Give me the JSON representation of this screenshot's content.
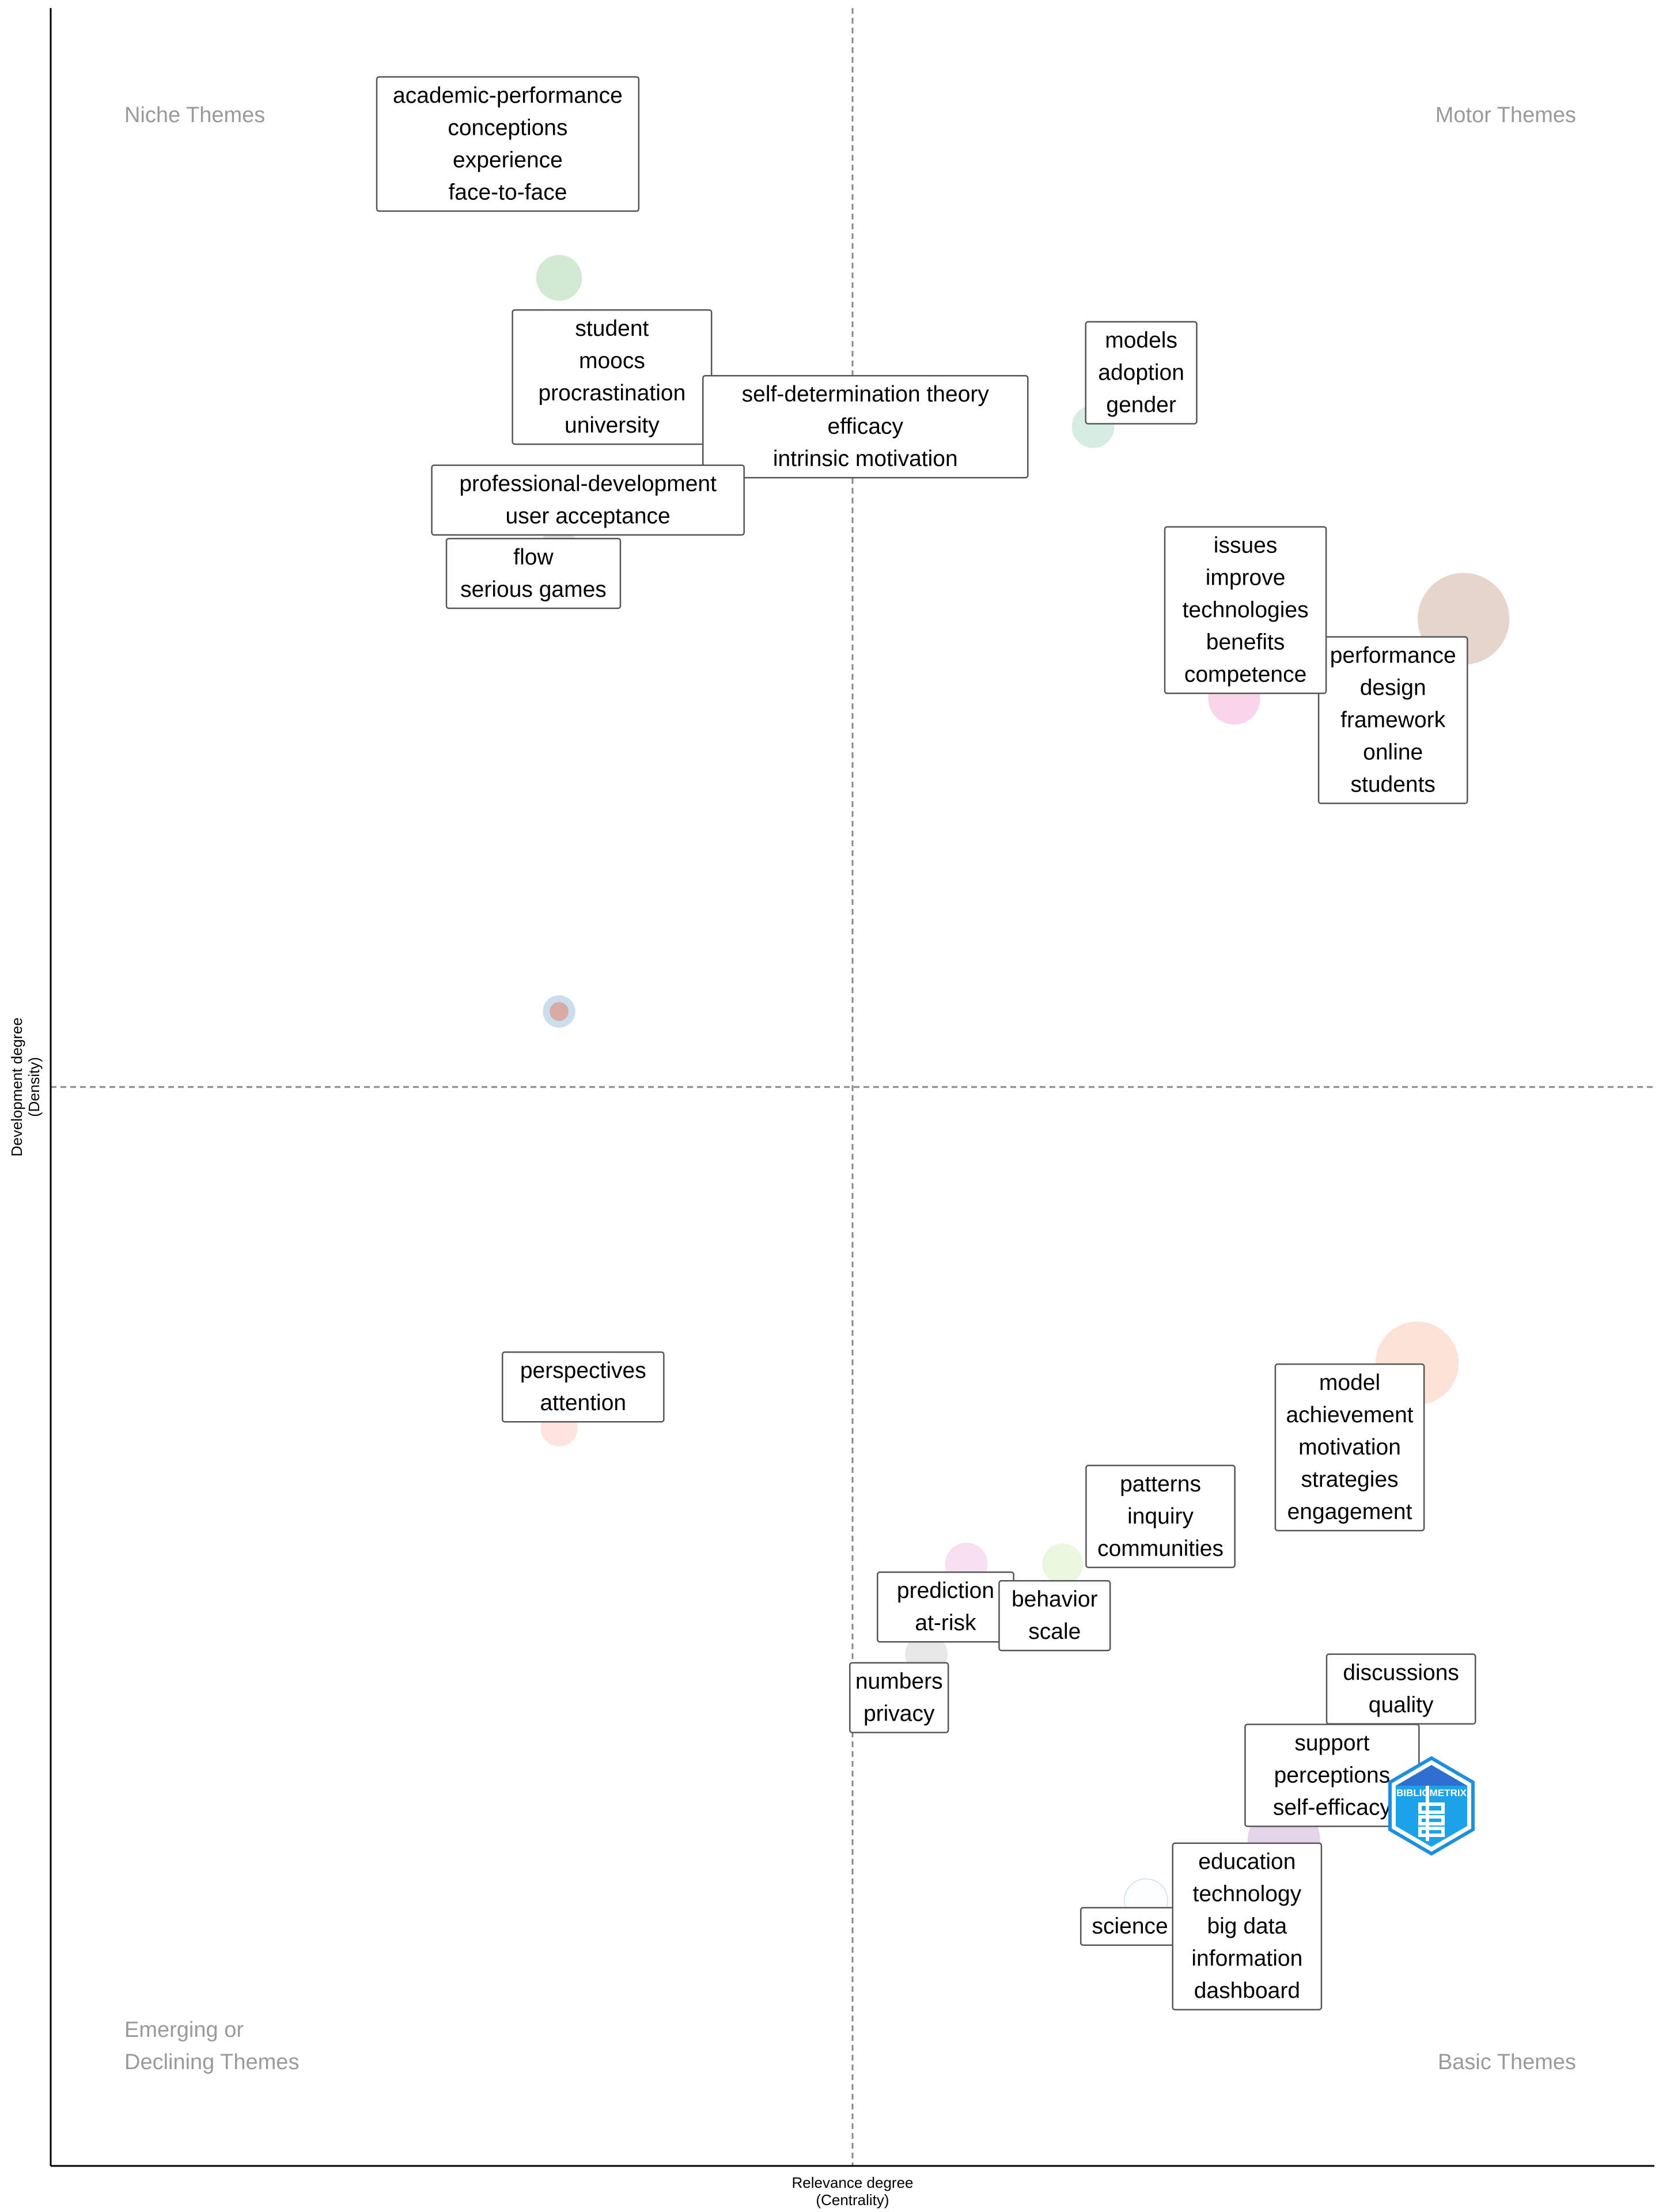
{
  "chart_data": {
    "type": "scatter",
    "subtype": "thematic-map",
    "xlabel": [
      "Relevance degree",
      "(Centrality)"
    ],
    "ylabel": [
      "Development degree",
      "(Density)"
    ],
    "xlim": [
      0,
      100
    ],
    "ylim": [
      0,
      100
    ],
    "x_divider": 50,
    "y_divider": 50,
    "grid": false,
    "quadrant_labels": {
      "top_left": [
        "Niche Themes"
      ],
      "top_right": [
        "Motor Themes"
      ],
      "bottom_left": [
        "Emerging or",
        "Declining Themes"
      ],
      "bottom_right": [
        "Basic Themes"
      ]
    },
    "logo_text": "BIBLIOMETRIX",
    "clusters": [
      {
        "x": 31.7,
        "y": 87.5,
        "size": 0.7,
        "color": "#cfe9cf",
        "label": [
          "academic-performance",
          "conceptions",
          "experience",
          "face-to-face"
        ],
        "label_x": 28.5,
        "label_y": 93.7
      },
      {
        "x": 31.7,
        "y": 84.7,
        "size": 0.75,
        "color": "#f6c6c6",
        "label": [
          "student",
          "moocs",
          "procrastination",
          "university"
        ],
        "label_x": 35.0,
        "label_y": 82.9
      },
      {
        "x": 58.7,
        "y": 80.6,
        "size": 0.6,
        "color": "#fbefb8",
        "label": [
          "self-determination theory",
          "efficacy",
          "intrinsic motivation"
        ],
        "label_x": 50.8,
        "label_y": 80.6
      },
      {
        "x": 65.0,
        "y": 80.6,
        "size": 0.6,
        "color": "#d3ece2",
        "label": [
          "models",
          "adoption",
          "gender"
        ],
        "label_x": 68.0,
        "label_y": 83.1
      },
      {
        "x": 31.7,
        "y": 75.0,
        "size": 0.5,
        "color": "#e3e3e3",
        "label": [
          "professional-development",
          "user acceptance"
        ],
        "label_x": 33.5,
        "label_y": 77.2
      },
      {
        "x": 31.7,
        "y": 75.0,
        "size": 0.4,
        "color": "#dddddd",
        "label": [
          "flow",
          "serious games"
        ],
        "label_x": 30.1,
        "label_y": 73.8
      },
      {
        "x": 88.1,
        "y": 71.7,
        "size": 2.8,
        "color": "#e5d3c8",
        "label": [
          "performance",
          "design",
          "framework",
          "online",
          "students"
        ],
        "label_x": 83.7,
        "label_y": 67.0
      },
      {
        "x": 73.8,
        "y": 68.0,
        "size": 0.9,
        "color": "#f9d3ea",
        "label": [
          "issues",
          "improve",
          "technologies",
          "benefits",
          "competence"
        ],
        "label_x": 74.5,
        "label_y": 72.1
      },
      {
        "x": 31.7,
        "y": 53.5,
        "size": 0.35,
        "color": "#c7dcec",
        "label": [],
        "label_x": 31.7,
        "label_y": 53.5
      },
      {
        "x": 31.7,
        "y": 53.5,
        "size": 0.12,
        "color": "#d9a8a0",
        "label": [],
        "label_x": 31.7,
        "label_y": 53.5
      },
      {
        "x": 31.7,
        "y": 34.2,
        "size": 0.45,
        "color": "#fde0dd",
        "label": [
          "perspectives",
          "attention"
        ],
        "label_x": 33.2,
        "label_y": 36.1
      },
      {
        "x": 85.2,
        "y": 37.2,
        "size": 2.3,
        "color": "#fde0d6",
        "label": [
          "model",
          "achievement",
          "motivation",
          "strategies",
          "engagement"
        ],
        "label_x": 81.0,
        "label_y": 33.3
      },
      {
        "x": 71.0,
        "y": 31.2,
        "size": 0.8,
        "color": "#e8f1fa",
        "label": [
          "patterns",
          "inquiry",
          "communities"
        ],
        "label_x": 69.2,
        "label_y": 30.1
      },
      {
        "x": 57.1,
        "y": 27.9,
        "size": 0.6,
        "color": "#f7deee",
        "label": [
          "prediction",
          "at-risk"
        ],
        "label_x": 55.8,
        "label_y": 25.9
      },
      {
        "x": 63.1,
        "y": 27.9,
        "size": 0.55,
        "color": "#e8f7dc",
        "label": [
          "behavior",
          "scale"
        ],
        "label_x": 62.6,
        "label_y": 25.5
      },
      {
        "x": 54.6,
        "y": 23.7,
        "size": 0.6,
        "color": "#e6e6e6",
        "label": [
          "numbers",
          "privacy"
        ],
        "label_x": 52.9,
        "label_y": 21.7
      },
      {
        "x": 82.6,
        "y": 20.3,
        "size": 0.25,
        "color": "#dbe5f4",
        "label": [
          "discussions",
          "quality"
        ],
        "label_x": 84.2,
        "label_y": 22.1
      },
      {
        "x": 76.9,
        "y": 15.1,
        "size": 1.75,
        "color": "#e1d2e7",
        "label": [
          "support",
          "perceptions",
          "self-efficacy"
        ],
        "label_x": 79.9,
        "label_y": 18.1
      },
      {
        "x": 68.3,
        "y": 12.3,
        "size": 0.65,
        "color": "#c9dcee",
        "label": [
          "science"
        ],
        "label_x": 67.3,
        "label_y": 11.1
      },
      {
        "x": 68.3,
        "y": 12.3,
        "size": 0.6,
        "color": "#ffffff",
        "label": [
          "education",
          "technology",
          "big data",
          "information",
          "dashboard"
        ],
        "label_x": 74.6,
        "label_y": 11.1
      }
    ]
  }
}
